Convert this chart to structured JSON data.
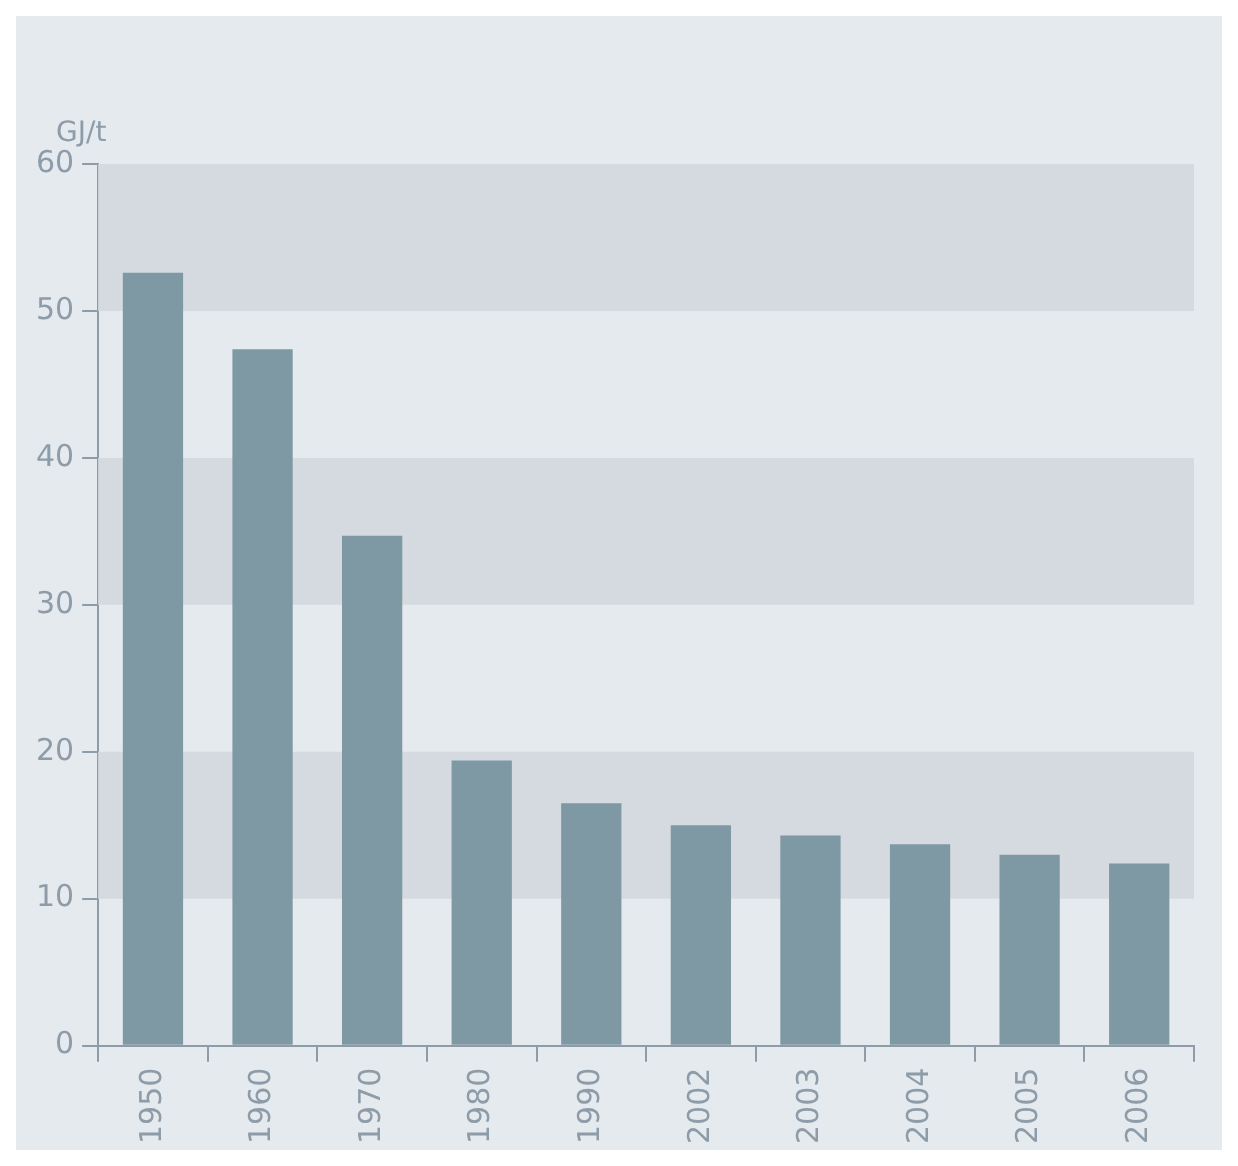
{
  "chart_data": {
    "type": "bar",
    "ylabel": "GJ/t",
    "categories": [
      "1950",
      "1960",
      "1970",
      "1980",
      "1990",
      "2002",
      "2003",
      "2004",
      "2005",
      "2006"
    ],
    "values": [
      52.6,
      47.4,
      34.7,
      19.4,
      16.5,
      15.0,
      14.3,
      13.7,
      13.0,
      12.4
    ],
    "color": "#7e98a4",
    "ylim": [
      0,
      60
    ],
    "yticks": [
      0,
      10,
      20,
      30,
      40,
      50,
      60
    ],
    "bands": [
      {
        "axis": "y",
        "from": 10,
        "to": 20,
        "color": "#d4dadf"
      },
      {
        "axis": "y",
        "from": 30,
        "to": 40,
        "color": "#d4dadf"
      },
      {
        "axis": "y",
        "from": 50,
        "to": 60,
        "color": "#d4dadf"
      }
    ],
    "grid": false,
    "legend": false
  }
}
